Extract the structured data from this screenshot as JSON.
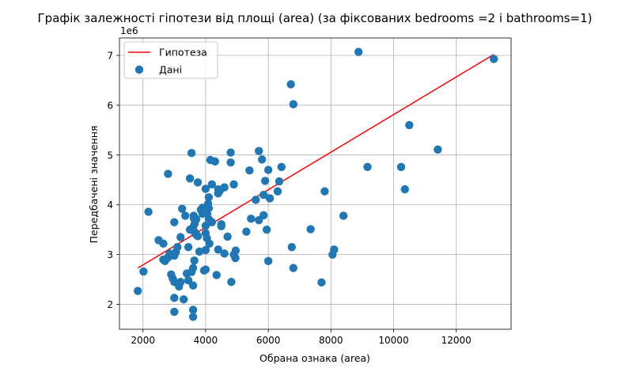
{
  "chart_data": {
    "type": "scatter",
    "title": "Графік залежності гіпотези від площі (area) (за фіксованих bedrooms =2 і bathrooms=1)",
    "xlabel": "Обрана ознака (area)",
    "ylabel": "Передбачені значення",
    "y_offset_label": "1e6",
    "xlim": [
      1250,
      13750
    ],
    "ylim": [
      1.5,
      7.35
    ],
    "x_ticks": [
      2000,
      4000,
      6000,
      8000,
      10000,
      12000
    ],
    "y_ticks": [
      2,
      3,
      4,
      5,
      6,
      7
    ],
    "grid": true,
    "legend_position": "upper left",
    "colors": {
      "line": "#ff0000",
      "points": "#1f77b4"
    },
    "series": [
      {
        "name": "Гипотеза",
        "kind": "line",
        "x": [
          1836,
          13200
        ],
        "y": [
          2.73,
          7.02
        ]
      },
      {
        "name": "Дані",
        "kind": "scatter",
        "x": [
          1836,
          2016,
          2175,
          2500,
          2650,
          2700,
          2800,
          2850,
          2900,
          2950,
          3000,
          3000,
          3000,
          3000,
          3050,
          3100,
          3150,
          3200,
          3200,
          3250,
          3300,
          3350,
          3400,
          3450,
          3450,
          3500,
          3500,
          3550,
          3550,
          3600,
          3600,
          3600,
          3600,
          3620,
          3640,
          3650,
          3650,
          3700,
          3700,
          3750,
          3750,
          3800,
          3850,
          3900,
          3900,
          3950,
          4000,
          4000,
          4000,
          4000,
          4040,
          4050,
          4080,
          4100,
          4100,
          4100,
          4120,
          4150,
          4200,
          4300,
          4350,
          4400,
          4400,
          4400,
          4450,
          4500,
          4500,
          4600,
          4600,
          4700,
          4800,
          4800,
          4820,
          4900,
          4950,
          4960,
          5300,
          5400,
          5450,
          5600,
          5700,
          5800,
          5850,
          5850,
          5900,
          5950,
          6000,
          6000,
          6050,
          6300,
          6350,
          6420,
          6720,
          6750,
          6800,
          6800,
          7350,
          7700,
          7800,
          8050,
          8100,
          8400,
          8880,
          9166,
          10240,
          10360,
          10500,
          11410,
          13200,
          3000,
          2650,
          2800,
          3600,
          4000,
          3620,
          5700,
          4200,
          4900
        ],
        "y": [
          2.27,
          2.66,
          3.86,
          3.29,
          3.22,
          2.87,
          2.94,
          3.02,
          2.6,
          2.52,
          2.45,
          1.85,
          2.13,
          3.65,
          3.05,
          3.15,
          2.36,
          3.35,
          2.45,
          3.92,
          2.1,
          3.78,
          2.62,
          2.48,
          3.15,
          4.53,
          3.5,
          2.65,
          5.04,
          1.75,
          1.89,
          2.38,
          3.55,
          3.78,
          2.88,
          3.45,
          3.62,
          3.4,
          3.71,
          3.37,
          4.45,
          3.06,
          3.9,
          3.82,
          3.94,
          2.68,
          2.7,
          3.43,
          3.58,
          4.32,
          3.33,
          3.82,
          4.02,
          3.71,
          3.93,
          4.15,
          3.22,
          4.9,
          3.65,
          4.87,
          2.59,
          4.23,
          3.1,
          4.31,
          4.28,
          3.57,
          3.61,
          3.02,
          4.35,
          3.36,
          4.85,
          5.05,
          2.45,
          4.41,
          2.93,
          3.08,
          3.46,
          4.69,
          3.72,
          4.1,
          5.08,
          4.91,
          3.79,
          4.2,
          4.48,
          3.5,
          4.7,
          2.87,
          4.13,
          4.27,
          4.47,
          4.76,
          6.42,
          3.15,
          6.02,
          2.73,
          3.51,
          2.44,
          4.27,
          3.0,
          3.1,
          3.78,
          7.07,
          4.76,
          4.76,
          4.31,
          5.6,
          5.11,
          6.93,
          2.98,
          2.9,
          4.62,
          2.73,
          3.09,
          3.73,
          3.69,
          4.41,
          3.0
        ]
      }
    ]
  }
}
